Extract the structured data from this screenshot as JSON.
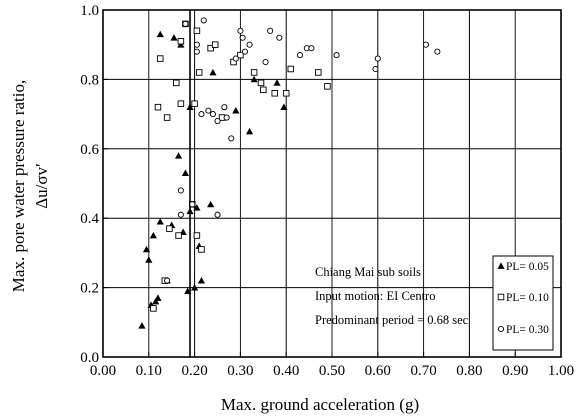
{
  "chart_data": {
    "type": "scatter",
    "xlabel": "Max. ground acceleration (g)",
    "ylabel_line1": "Max. pore water pressure ratio,",
    "ylabel_line2": "Δu/σv′",
    "xlim": [
      0,
      1
    ],
    "ylim": [
      0,
      1
    ],
    "x_ticks": [
      "0.00",
      "0.10",
      "0.20",
      "0.30",
      "0.40",
      "0.50",
      "0.60",
      "0.70",
      "0.80",
      "0.90",
      "1.00"
    ],
    "y_ticks": [
      "0.0",
      "0.2",
      "0.4",
      "0.6",
      "0.8",
      "1.0"
    ],
    "grid": true,
    "annotations": [
      "Chiang Mai sub soils",
      "Input motion: EI Centro",
      "Predominant period = 0.68 sec"
    ],
    "legend_position": "bottom-right",
    "series": [
      {
        "name": "PL= 0.05",
        "marker": "triangle",
        "color": "#000000",
        "points": [
          [
            0.085,
            0.09
          ],
          [
            0.095,
            0.31
          ],
          [
            0.1,
            0.28
          ],
          [
            0.105,
            0.15
          ],
          [
            0.11,
            0.35
          ],
          [
            0.115,
            0.16
          ],
          [
            0.12,
            0.17
          ],
          [
            0.125,
            0.39
          ],
          [
            0.14,
            0.22
          ],
          [
            0.15,
            0.38
          ],
          [
            0.155,
            0.92
          ],
          [
            0.165,
            0.58
          ],
          [
            0.17,
            0.9
          ],
          [
            0.175,
            0.36
          ],
          [
            0.18,
            0.53
          ],
          [
            0.185,
            0.19
          ],
          [
            0.19,
            0.72
          ],
          [
            0.19,
            0.42
          ],
          [
            0.2,
            0.2
          ],
          [
            0.205,
            0.43
          ],
          [
            0.21,
            0.32
          ],
          [
            0.215,
            0.22
          ],
          [
            0.235,
            0.44
          ],
          [
            0.24,
            0.82
          ],
          [
            0.29,
            0.71
          ],
          [
            0.32,
            0.65
          ],
          [
            0.33,
            0.8
          ],
          [
            0.38,
            0.79
          ],
          [
            0.395,
            0.72
          ],
          [
            0.125,
            0.93
          ]
        ]
      },
      {
        "name": "PL= 0.10",
        "marker": "square",
        "color": "#000000",
        "points": [
          [
            0.11,
            0.14
          ],
          [
            0.12,
            0.72
          ],
          [
            0.125,
            0.86
          ],
          [
            0.135,
            0.22
          ],
          [
            0.14,
            0.69
          ],
          [
            0.145,
            0.37
          ],
          [
            0.16,
            0.79
          ],
          [
            0.165,
            0.35
          ],
          [
            0.17,
            0.91
          ],
          [
            0.17,
            0.73
          ],
          [
            0.18,
            0.96
          ],
          [
            0.195,
            0.44
          ],
          [
            0.2,
            0.73
          ],
          [
            0.205,
            0.94
          ],
          [
            0.205,
            0.35
          ],
          [
            0.21,
            0.82
          ],
          [
            0.215,
            0.31
          ],
          [
            0.235,
            0.89
          ],
          [
            0.245,
            0.9
          ],
          [
            0.26,
            0.69
          ],
          [
            0.285,
            0.85
          ],
          [
            0.3,
            0.87
          ],
          [
            0.33,
            0.82
          ],
          [
            0.345,
            0.79
          ],
          [
            0.35,
            0.77
          ],
          [
            0.375,
            0.76
          ],
          [
            0.4,
            0.76
          ],
          [
            0.41,
            0.83
          ],
          [
            0.47,
            0.82
          ],
          [
            0.49,
            0.78
          ]
        ]
      },
      {
        "name": "PL= 0.30",
        "marker": "circle",
        "color": "#000000",
        "points": [
          [
            0.14,
            0.22
          ],
          [
            0.17,
            0.48
          ],
          [
            0.17,
            0.41
          ],
          [
            0.18,
            0.96
          ],
          [
            0.195,
            0.44
          ],
          [
            0.205,
            0.9
          ],
          [
            0.205,
            0.88
          ],
          [
            0.215,
            0.7
          ],
          [
            0.22,
            0.97
          ],
          [
            0.23,
            0.71
          ],
          [
            0.24,
            0.7
          ],
          [
            0.25,
            0.41
          ],
          [
            0.25,
            0.68
          ],
          [
            0.265,
            0.72
          ],
          [
            0.27,
            0.69
          ],
          [
            0.28,
            0.63
          ],
          [
            0.29,
            0.86
          ],
          [
            0.3,
            0.94
          ],
          [
            0.305,
            0.92
          ],
          [
            0.31,
            0.88
          ],
          [
            0.32,
            0.9
          ],
          [
            0.355,
            0.85
          ],
          [
            0.365,
            0.94
          ],
          [
            0.385,
            0.92
          ],
          [
            0.43,
            0.87
          ],
          [
            0.445,
            0.89
          ],
          [
            0.455,
            0.89
          ],
          [
            0.51,
            0.87
          ],
          [
            0.595,
            0.83
          ],
          [
            0.6,
            0.86
          ],
          [
            0.705,
            0.9
          ],
          [
            0.73,
            0.88
          ]
        ]
      }
    ]
  }
}
